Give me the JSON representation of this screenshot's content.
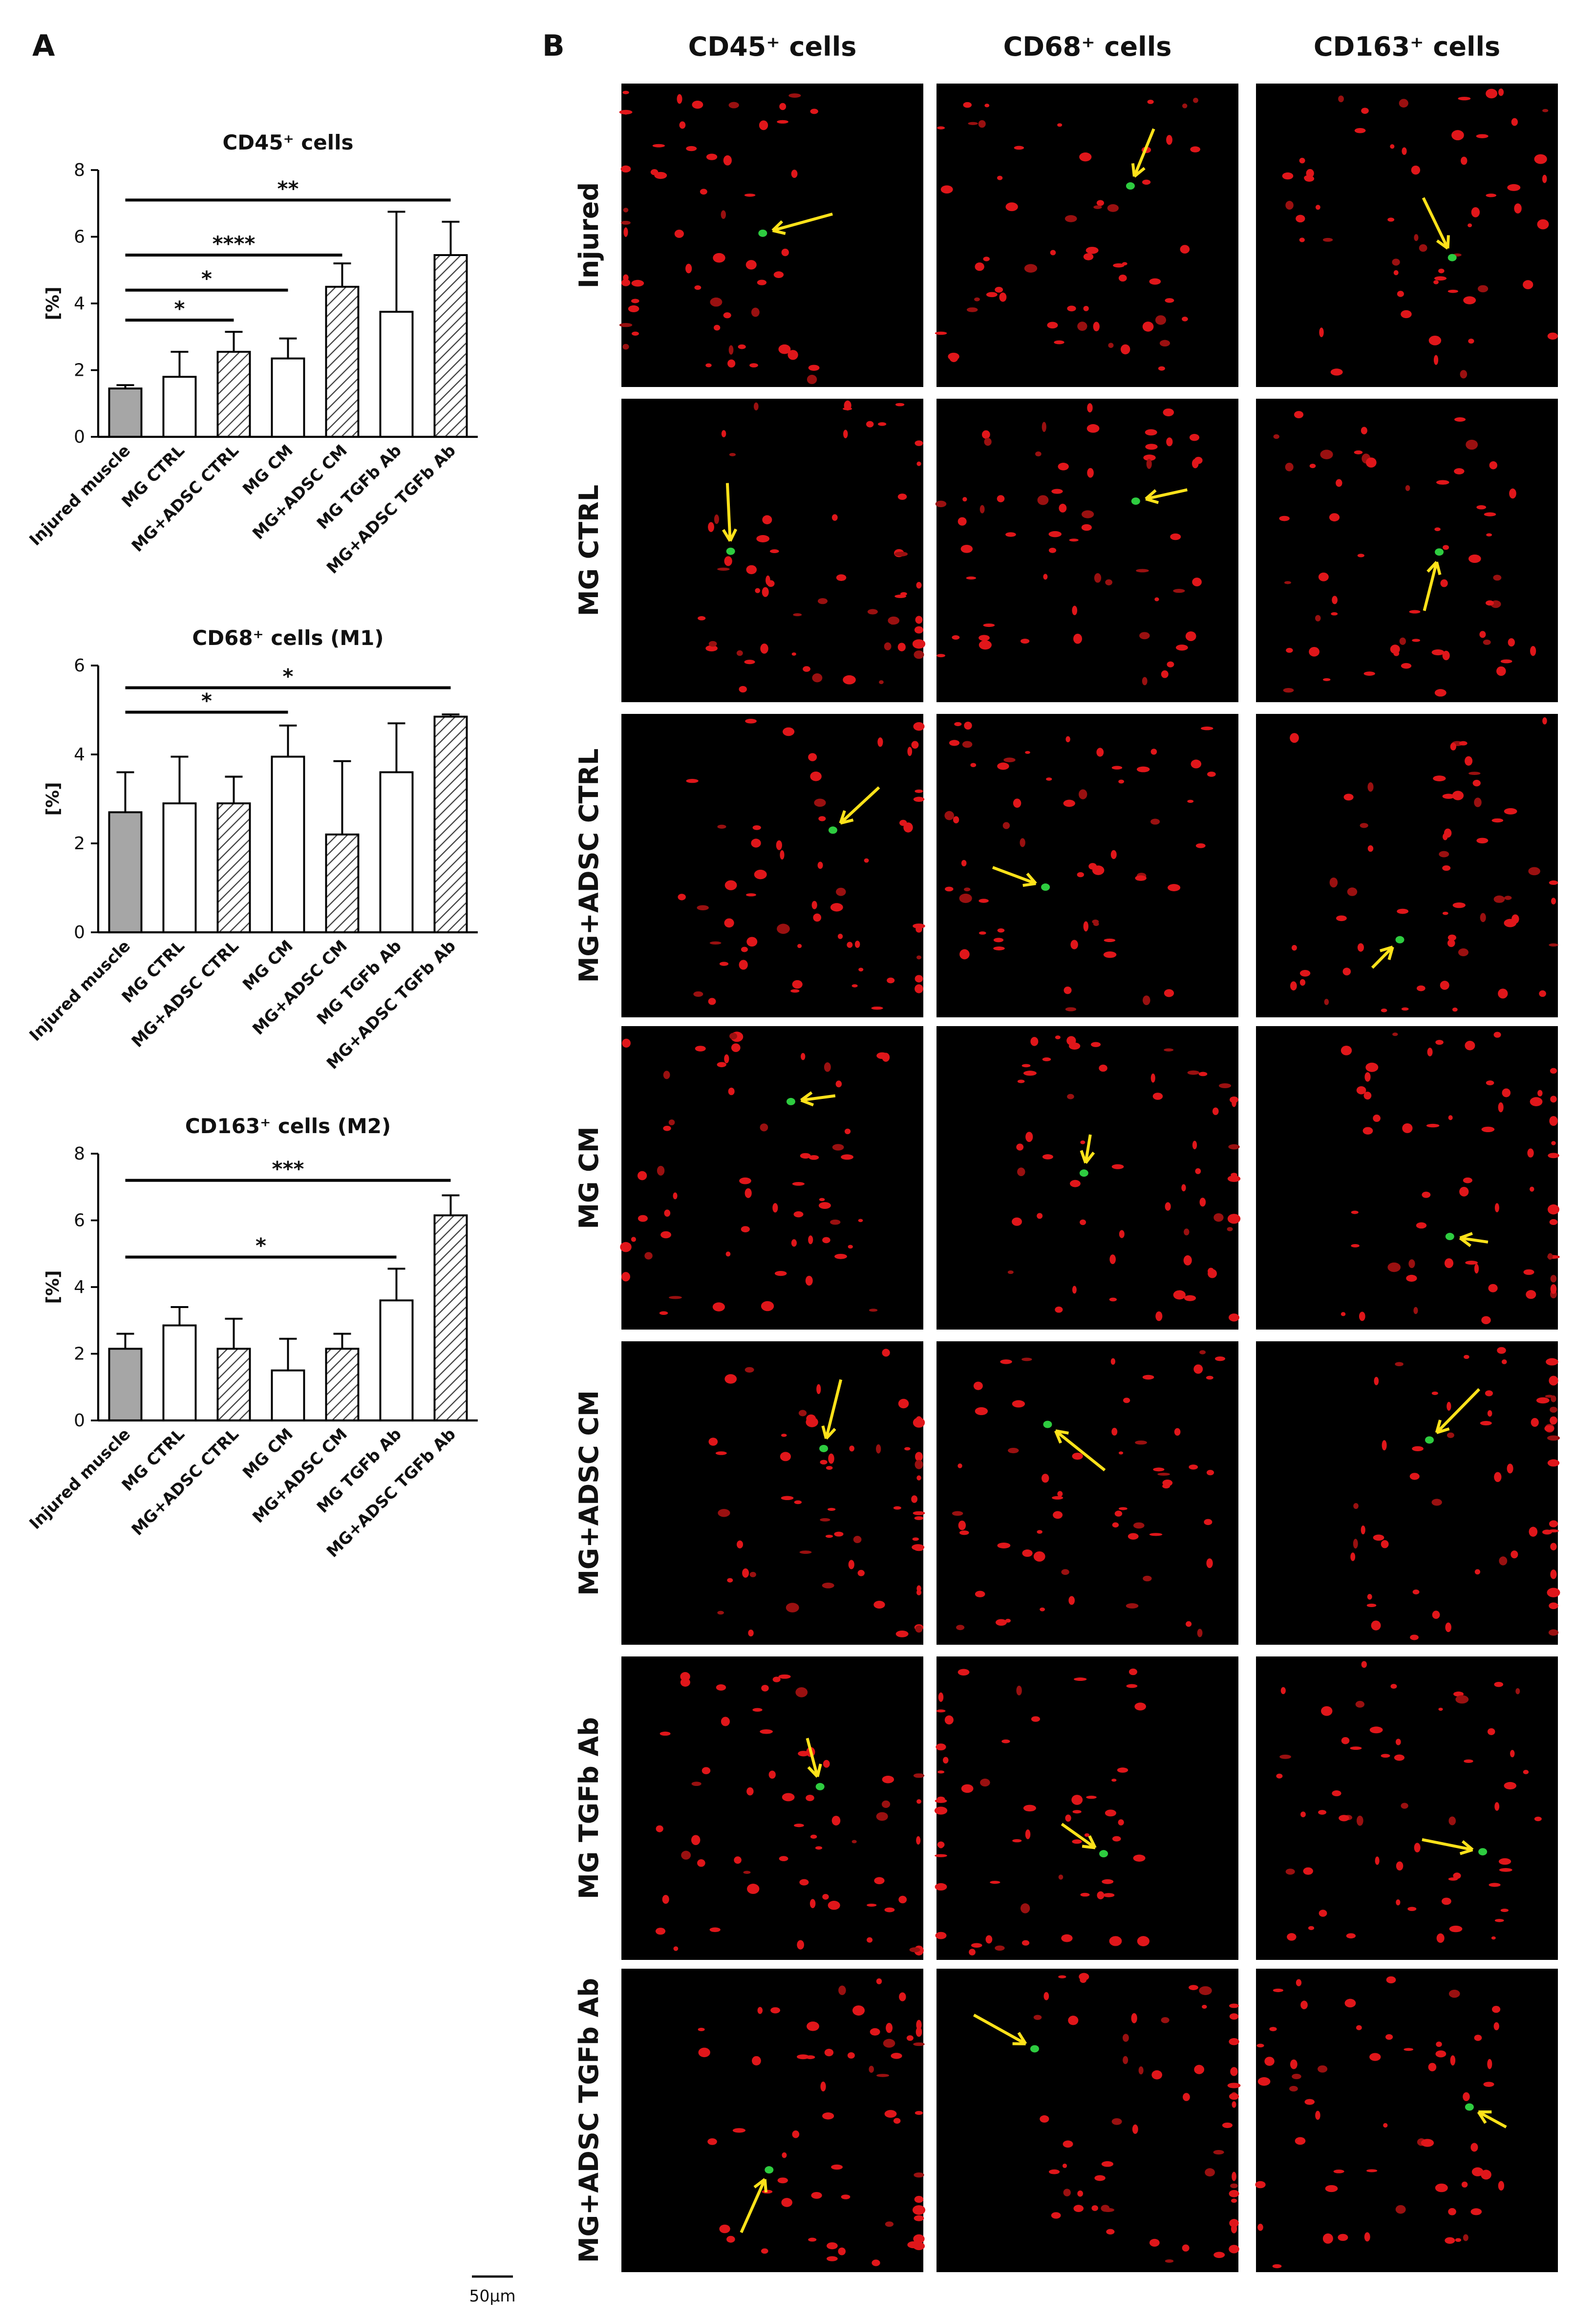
{
  "panel_labels": [
    "A",
    "B"
  ],
  "chart_data": [
    {
      "type": "bar",
      "title": "CD45⁺ cells",
      "y_label": "[%]",
      "categories": [
        "Injured muscle",
        "MG CTRL",
        "MG+ADSC CTRL",
        "MG CM",
        "MG+ADSC CM",
        "MG TGFb Ab",
        "MG+ADSC TGFb Ab"
      ],
      "values": [
        1.45,
        1.8,
        2.55,
        2.35,
        4.5,
        3.75,
        5.45
      ],
      "errors": [
        0.1,
        0.75,
        0.6,
        0.6,
        0.7,
        3.0,
        1.0
      ],
      "bar_fills": [
        "#a6a6a6",
        "#ffffff",
        "hatch",
        "#ffffff",
        "hatch",
        "#ffffff",
        "hatch"
      ],
      "ylim": [
        0,
        8
      ],
      "yticks": [
        0,
        2,
        4,
        6,
        8
      ],
      "significance": [
        {
          "from": "Injured muscle",
          "to": "MG+ADSC TGFb Ab",
          "y": 7.1,
          "label": "**"
        },
        {
          "from": "Injured muscle",
          "to": "MG+ADSC CM",
          "y": 5.45,
          "label": "****"
        },
        {
          "from": "Injured muscle",
          "to": "MG CM",
          "y": 4.4,
          "label": "*"
        },
        {
          "from": "Injured muscle",
          "to": "MG+ADSC CTRL",
          "y": 3.5,
          "label": "*"
        }
      ]
    },
    {
      "type": "bar",
      "title": "CD68⁺ cells (M1)",
      "y_label": "[%]",
      "categories": [
        "Injured muscle",
        "MG CTRL",
        "MG+ADSC CTRL",
        "MG CM",
        "MG+ADSC CM",
        "MG TGFb Ab",
        "MG+ADSC TGFb Ab"
      ],
      "values": [
        2.7,
        2.9,
        2.9,
        3.95,
        2.2,
        3.6,
        4.85
      ],
      "errors": [
        0.9,
        1.05,
        0.6,
        0.7,
        1.65,
        1.1,
        0.05
      ],
      "bar_fills": [
        "#a6a6a6",
        "#ffffff",
        "hatch",
        "#ffffff",
        "hatch",
        "#ffffff",
        "hatch"
      ],
      "ylim": [
        0,
        6
      ],
      "yticks": [
        0,
        2,
        4,
        6
      ],
      "significance": [
        {
          "from": "Injured muscle",
          "to": "MG+ADSC TGFb Ab",
          "y": 5.5,
          "label": "*"
        },
        {
          "from": "Injured muscle",
          "to": "MG CM",
          "y": 4.95,
          "label": "*"
        }
      ]
    },
    {
      "type": "bar",
      "title": "CD163⁺ cells (M2)",
      "y_label": "[%]",
      "categories": [
        "Injured muscle",
        "MG CTRL",
        "MG+ADSC CTRL",
        "MG CM",
        "MG+ADSC CM",
        "MG TGFb Ab",
        "MG+ADSC TGFb Ab"
      ],
      "values": [
        2.15,
        2.85,
        2.15,
        1.5,
        2.15,
        3.6,
        6.15
      ],
      "errors": [
        0.45,
        0.55,
        0.9,
        0.95,
        0.45,
        0.95,
        0.6
      ],
      "bar_fills": [
        "#a6a6a6",
        "#ffffff",
        "hatch",
        "#ffffff",
        "hatch",
        "#ffffff",
        "hatch"
      ],
      "ylim": [
        0,
        8
      ],
      "yticks": [
        0,
        2,
        4,
        6,
        8
      ],
      "significance": [
        {
          "from": "Injured muscle",
          "to": "MG+ADSC TGFb Ab",
          "y": 7.2,
          "label": "***"
        },
        {
          "from": "Injured muscle",
          "to": "MG TGFb Ab",
          "y": 4.9,
          "label": "*"
        }
      ]
    }
  ],
  "micrographs": {
    "columns": [
      "CD45⁺ cells",
      "CD68⁺ cells",
      "CD163⁺ cells"
    ],
    "rows": [
      "Injured",
      "MG CTRL",
      "MG+ADSC CTRL",
      "MG CM",
      "MG+ADSC CM",
      "MG TGFb Ab",
      "MG+ADSC TGFb Ab"
    ]
  },
  "scale_bar": "50μm"
}
